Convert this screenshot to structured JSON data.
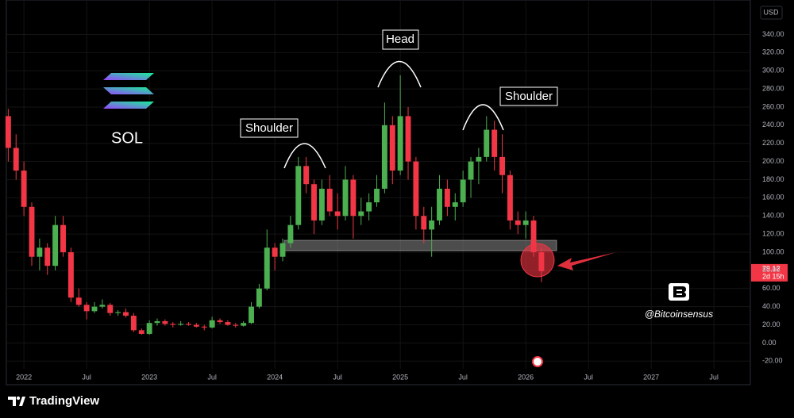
{
  "chart_data": {
    "type": "candlestick",
    "symbol": "SOL",
    "currency": "USD",
    "x": [
      2021.875,
      2021.9375,
      2022.0,
      2022.0625,
      2022.125,
      2022.1875,
      2022.25,
      2022.3125,
      2022.375,
      2022.4375,
      2022.5,
      2022.5625,
      2022.625,
      2022.6875,
      2022.75,
      2022.8125,
      2022.875,
      2022.9375,
      2023.0,
      2023.0625,
      2023.125,
      2023.1875,
      2023.25,
      2023.3125,
      2023.375,
      2023.4375,
      2023.5,
      2023.5625,
      2023.625,
      2023.6875,
      2023.75,
      2023.8125,
      2023.875,
      2023.9375,
      2024.0,
      2024.0625,
      2024.125,
      2024.1875,
      2024.25,
      2024.3125,
      2024.375,
      2024.4375,
      2024.5,
      2024.5625,
      2024.625,
      2024.6875,
      2024.75,
      2024.8125,
      2024.875,
      2024.9375,
      2025.0,
      2025.0625,
      2025.125,
      2025.1875,
      2025.25,
      2025.3125,
      2025.375,
      2025.4375,
      2025.5,
      2025.5625,
      2025.625,
      2025.6875,
      2025.75,
      2025.8125,
      2025.875,
      2025.9375,
      2026.0,
      2026.0625,
      2026.125
    ],
    "open": [
      250,
      215,
      190,
      150,
      95,
      105,
      85,
      130,
      100,
      50,
      42,
      35,
      40,
      42,
      33,
      34,
      30,
      14,
      10,
      22,
      24,
      21,
      20,
      21,
      20,
      18,
      17,
      25,
      23,
      20,
      19,
      22,
      40,
      60,
      105,
      95,
      110,
      130,
      195,
      175,
      135,
      170,
      145,
      140,
      180,
      140,
      145,
      155,
      170,
      240,
      190,
      250,
      200,
      140,
      125,
      135,
      170,
      150,
      155,
      180,
      200,
      205,
      235,
      205,
      185,
      135,
      130,
      135,
      100
    ],
    "high": [
      258,
      230,
      200,
      155,
      115,
      110,
      140,
      140,
      105,
      60,
      45,
      45,
      48,
      44,
      36,
      38,
      33,
      16,
      25,
      27,
      26,
      23,
      24,
      23,
      22,
      20,
      29,
      27,
      25,
      22,
      24,
      45,
      65,
      125,
      110,
      115,
      140,
      205,
      205,
      180,
      180,
      185,
      165,
      195,
      185,
      160,
      165,
      185,
      265,
      250,
      295,
      260,
      205,
      150,
      150,
      185,
      180,
      165,
      190,
      205,
      215,
      250,
      245,
      230,
      190,
      145,
      145,
      140,
      105
    ],
    "low": [
      200,
      180,
      140,
      85,
      80,
      75,
      80,
      95,
      45,
      40,
      26,
      33,
      38,
      30,
      30,
      28,
      12,
      9,
      9,
      19,
      19,
      17,
      19,
      19,
      17,
      14,
      16,
      21,
      19,
      17,
      18,
      21,
      38,
      58,
      80,
      90,
      105,
      125,
      165,
      120,
      130,
      140,
      125,
      135,
      115,
      130,
      135,
      150,
      165,
      175,
      185,
      180,
      125,
      110,
      95,
      130,
      140,
      135,
      150,
      160,
      175,
      200,
      190,
      165,
      125,
      120,
      115,
      95,
      67
    ],
    "close": [
      215,
      190,
      150,
      95,
      105,
      85,
      130,
      100,
      50,
      42,
      35,
      40,
      42,
      33,
      34,
      30,
      14,
      10,
      22,
      24,
      21,
      20,
      21,
      20,
      18,
      17,
      25,
      23,
      20,
      19,
      22,
      40,
      60,
      105,
      95,
      110,
      130,
      195,
      175,
      135,
      170,
      145,
      140,
      180,
      140,
      145,
      155,
      170,
      240,
      190,
      250,
      200,
      140,
      125,
      135,
      170,
      150,
      155,
      180,
      200,
      205,
      235,
      205,
      185,
      135,
      130,
      135,
      100,
      79.12
    ],
    "up_color": "#4caf50",
    "down_color": "#f23645",
    "last_price": 79.12,
    "countdown": "2d 15h",
    "xlim": [
      2021.86,
      2027.79
    ],
    "xticks": [
      2022,
      {
        "value": 2022.5,
        "label": "Jul"
      },
      2023,
      {
        "value": 2023.5,
        "label": "Jul"
      },
      2024,
      {
        "value": 2024.5,
        "label": "Jul"
      },
      2025,
      {
        "value": 2025.5,
        "label": "Jul"
      },
      2026,
      {
        "value": 2026.5,
        "label": "Jul"
      },
      2027,
      {
        "value": 2027.5,
        "label": "Jul"
      }
    ],
    "ylim": [
      -46,
      378
    ],
    "yticks": [
      {
        "value": -20,
        "label": "-20.00"
      },
      {
        "value": 0,
        "label": "0.00"
      },
      {
        "value": 20,
        "label": "20.00"
      },
      {
        "value": 40,
        "label": "40.00"
      },
      {
        "value": 60,
        "label": "60.00"
      },
      {
        "value": 80,
        "label": "80.00"
      },
      {
        "value": 100,
        "label": "100.00"
      },
      {
        "value": 120,
        "label": "120.00"
      },
      {
        "value": 140,
        "label": "140.00"
      },
      {
        "value": 160,
        "label": "160.00"
      },
      {
        "value": 180,
        "label": "180.00"
      },
      {
        "value": 200,
        "label": "200.00"
      },
      {
        "value": 220,
        "label": "220.00"
      },
      {
        "value": 240,
        "label": "240.00"
      },
      {
        "value": 260,
        "label": "260.00"
      },
      {
        "value": 280,
        "label": "280.00"
      },
      {
        "value": 300,
        "label": "300.00"
      },
      {
        "value": 320,
        "label": "320.00"
      },
      {
        "value": 340,
        "label": "340.00"
      }
    ],
    "grid": true,
    "annotations": [
      "Shoulder",
      "Head",
      "Shoulder"
    ],
    "watermark": "@Bitcoinsensus",
    "brand": "TradingView"
  }
}
